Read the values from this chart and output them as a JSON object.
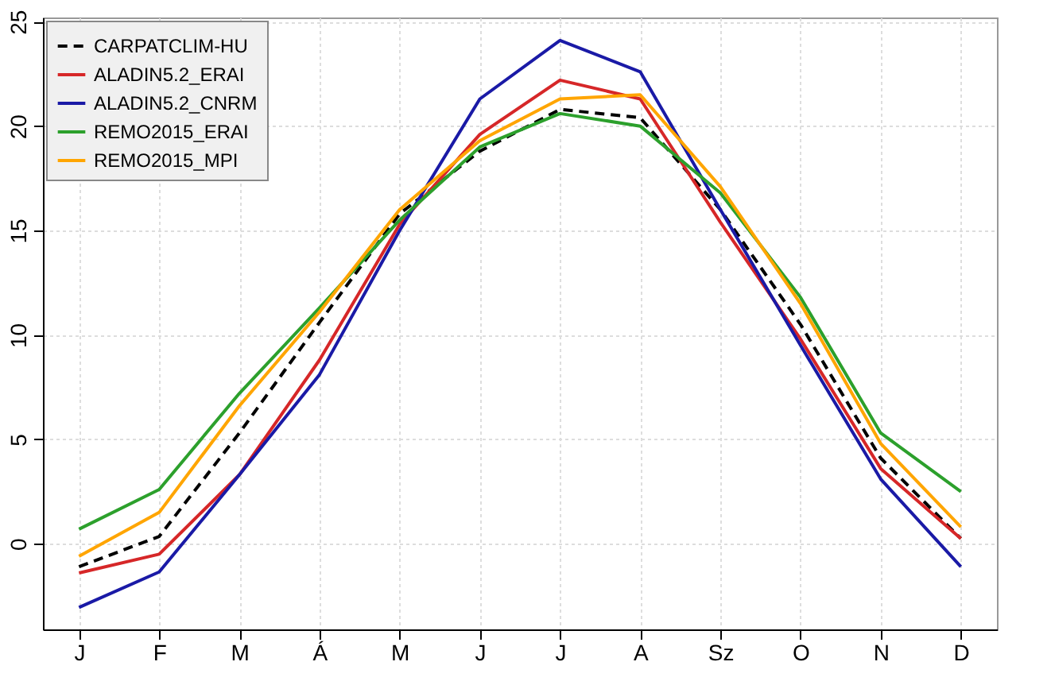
{
  "chart_data": {
    "type": "line",
    "categories": [
      "J",
      "F",
      "M",
      "Á",
      "M",
      "J",
      "J",
      "A",
      "Sz",
      "O",
      "N",
      "D"
    ],
    "series": [
      {
        "name": "CARPATCLIM-HU",
        "color": "#000000",
        "line_style": "dashed",
        "values": [
          -1.1,
          0.35,
          5.3,
          10.6,
          15.8,
          18.8,
          20.8,
          20.4,
          16.0,
          10.5,
          4.1,
          0.25
        ]
      },
      {
        "name": "ALADIN5.2_ERAI",
        "color": "#d62728",
        "values": [
          -1.4,
          -0.5,
          3.3,
          8.8,
          15.3,
          19.6,
          22.2,
          21.3,
          15.4,
          9.8,
          3.6,
          0.25
        ]
      },
      {
        "name": "ALADIN5.2_CNRM",
        "color": "#1a1aa6",
        "values": [
          -3.05,
          -1.35,
          3.3,
          8.1,
          15.0,
          21.3,
          24.1,
          22.6,
          16.0,
          9.5,
          3.1,
          -1.1
        ]
      },
      {
        "name": "REMO2015_ERAI",
        "color": "#2ca02c",
        "values": [
          0.7,
          2.6,
          7.2,
          11.3,
          15.5,
          19.0,
          20.6,
          20.0,
          16.8,
          11.8,
          5.3,
          2.5
        ]
      },
      {
        "name": "REMO2015_MPI",
        "color": "#ffa500",
        "values": [
          -0.6,
          1.5,
          6.6,
          11.1,
          16.0,
          19.3,
          21.3,
          21.5,
          17.1,
          11.5,
          4.8,
          0.8
        ]
      }
    ],
    "ylim": [
      -4.1,
      25.2
    ],
    "yticks": [
      0,
      5,
      10,
      15,
      20,
      25
    ],
    "grid": true,
    "legend": "top left",
    "line_style": "solid"
  }
}
